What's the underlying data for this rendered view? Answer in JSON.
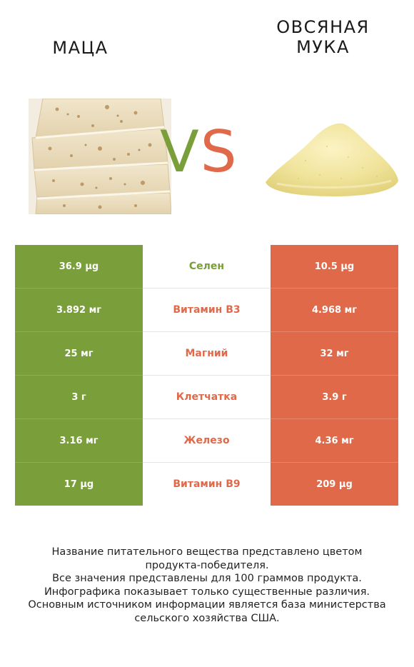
{
  "header": {
    "left_title": "МАЦА",
    "right_title": "ОВСЯНАЯ\nМУКА",
    "vs_v": "V",
    "vs_s": "S"
  },
  "images": {
    "left": "matzo-photo",
    "right": "oat-flour-pile-photo"
  },
  "colors": {
    "left_accent": "#7a9e3a",
    "right_accent": "#e0694a"
  },
  "rows": [
    {
      "left": "36.9 µg",
      "nutrient": "Селен",
      "right": "10.5 µg",
      "winner": "left"
    },
    {
      "left": "3.892 мг",
      "nutrient": "Витамин B3",
      "right": "4.968 мг",
      "winner": "right"
    },
    {
      "left": "25 мг",
      "nutrient": "Магний",
      "right": "32 мг",
      "winner": "right"
    },
    {
      "left": "3 г",
      "nutrient": "Клетчатка",
      "right": "3.9 г",
      "winner": "right"
    },
    {
      "left": "3.16 мг",
      "nutrient": "Железо",
      "right": "4.36 мг",
      "winner": "right"
    },
    {
      "left": "17 µg",
      "nutrient": "Витамин B9",
      "right": "209 µg",
      "winner": "right"
    }
  ],
  "footer": {
    "line1": "Название питательного вещества представлено цветом",
    "line2": "продукта-победителя.",
    "line3": "Все значения представлены для 100 граммов продукта.",
    "line4": "Инфографика показывает только существенные различия.",
    "line5": "Основным источником информации является база министерства",
    "line6": "сельского хозяйства США."
  }
}
